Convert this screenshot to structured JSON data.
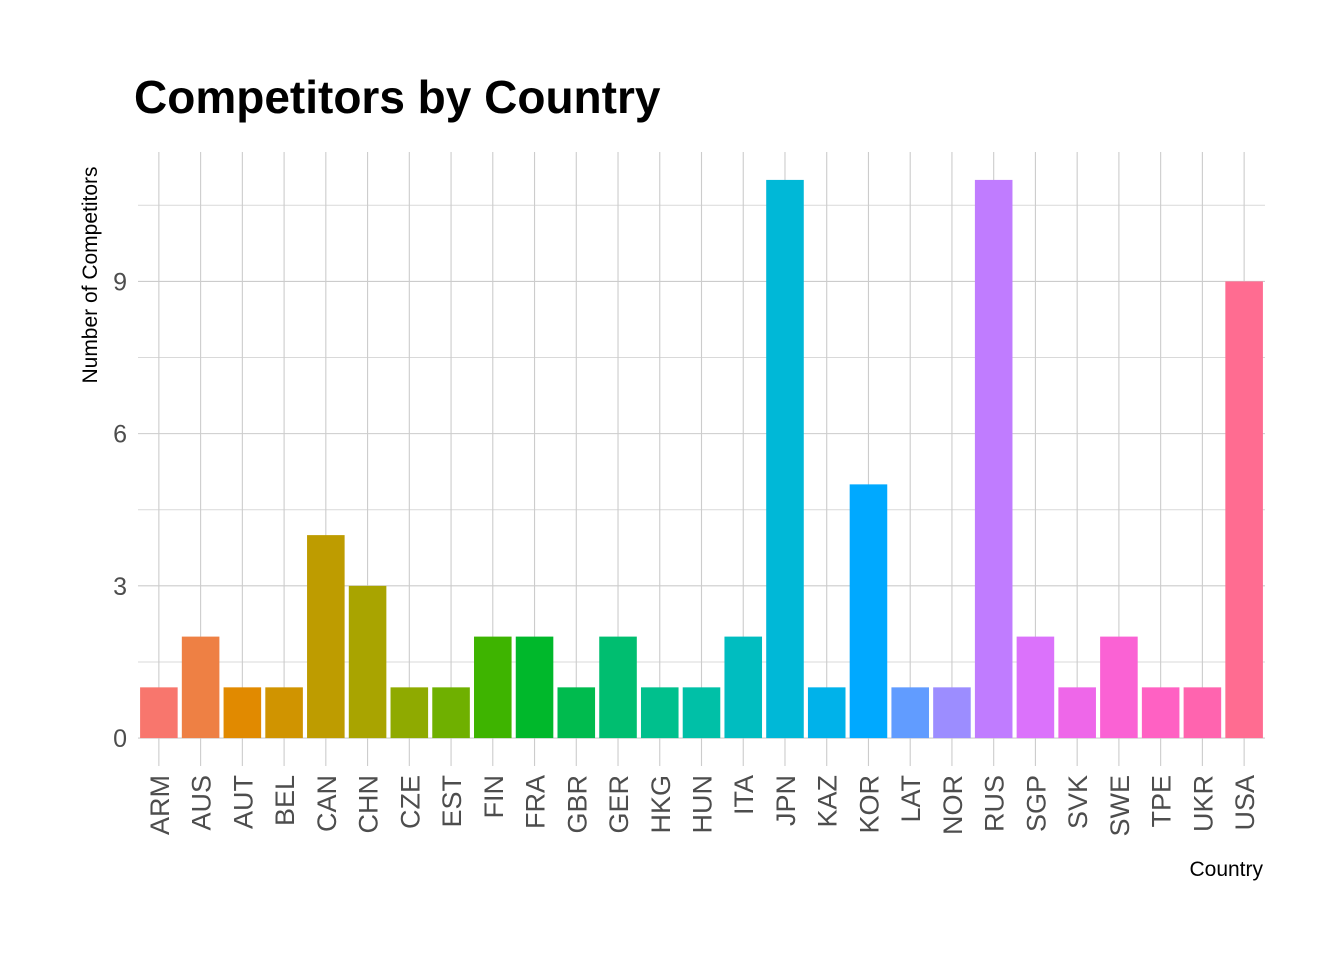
{
  "chart_data": {
    "type": "bar",
    "title": "Competitors by Country",
    "xlabel": "Country",
    "ylabel": "Number of Competitors",
    "categories": [
      "ARM",
      "AUS",
      "AUT",
      "BEL",
      "CAN",
      "CHN",
      "CZE",
      "EST",
      "FIN",
      "FRA",
      "GBR",
      "GER",
      "HKG",
      "HUN",
      "ITA",
      "JPN",
      "KAZ",
      "KOR",
      "LAT",
      "NOR",
      "RUS",
      "SGP",
      "SVK",
      "SWE",
      "TPE",
      "UKR",
      "USA"
    ],
    "values": [
      1,
      2,
      1,
      1,
      4,
      3,
      1,
      1,
      2,
      2,
      1,
      2,
      1,
      1,
      2,
      11,
      1,
      5,
      1,
      1,
      11,
      2,
      1,
      2,
      1,
      1,
      9
    ],
    "colors": [
      "#F8766D",
      "#EE8044",
      "#E18A00",
      "#D09400",
      "#BE9C00",
      "#A9A400",
      "#8FAA00",
      "#6FB000",
      "#3EB400",
      "#00B82B",
      "#00BB4E",
      "#00BE70",
      "#00C08D",
      "#00C0A7",
      "#00BDC0",
      "#00B8D7",
      "#00B2EA",
      "#00A9FF",
      "#619CFF",
      "#9C8DFF",
      "#C07CFF",
      "#DB72FB",
      "#EE67E9",
      "#FA62D4",
      "#FF61C3",
      "#FF64AF",
      "#FF6C91"
    ],
    "yticks": [
      0,
      3,
      6,
      9
    ],
    "ylim": [
      -0.55,
      11.55
    ],
    "grid": true,
    "legend": "none"
  }
}
